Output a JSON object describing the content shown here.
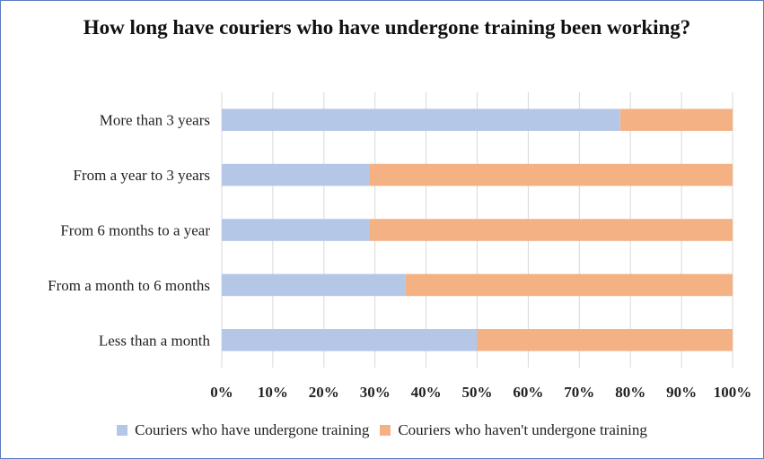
{
  "chart_data": {
    "type": "bar",
    "orientation": "horizontal",
    "stacked": true,
    "title": "How long have couriers who have undergone training been working?",
    "categories": [
      "More than 3 years",
      "From a year to 3 years",
      "From 6 months to a year",
      "From a month to 6 months",
      "Less than a month"
    ],
    "series": [
      {
        "name": "Couriers who have undergone training",
        "color": "#b4c7e7",
        "values": [
          78,
          29,
          29,
          36,
          50
        ]
      },
      {
        "name": "Couriers who haven't undergone training",
        "color": "#f4b183",
        "values": [
          22,
          71,
          71,
          64,
          50
        ]
      }
    ],
    "xlim": [
      0,
      100
    ],
    "x_ticks": [
      "0%",
      "10%",
      "20%",
      "30%",
      "40%",
      "50%",
      "60%",
      "70%",
      "80%",
      "90%",
      "100%"
    ],
    "grid": "vertical",
    "legend_position": "bottom"
  }
}
